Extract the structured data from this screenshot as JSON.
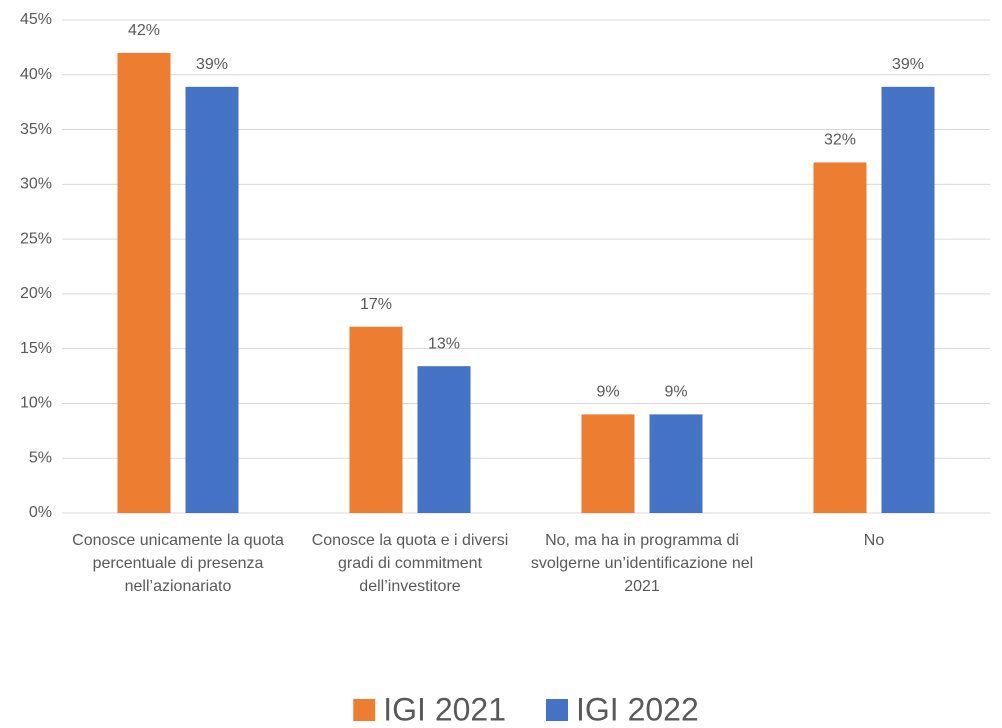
{
  "chart_data": {
    "type": "bar",
    "categories": [
      "Conosce unicamente la quota percentuale di presenza nell’azionariato",
      "Conosce la quota e i diversi gradi di commitment dell’investitore",
      "No, ma ha in programma di svolgerne un’identificazione nel 2021",
      "No"
    ],
    "series": [
      {
        "name": "IGI 2021",
        "color": "#ed7d31",
        "values": [
          42,
          17,
          9,
          32
        ],
        "value_labels": [
          "42%",
          "17%",
          "9%",
          "32%"
        ]
      },
      {
        "name": "IGI 2022",
        "color": "#4472c4",
        "values": [
          38.9,
          13.4,
          9,
          38.9
        ],
        "value_labels": [
          "39%",
          "13%",
          "9%",
          "39%"
        ]
      }
    ],
    "ylim": [
      0,
      45
    ],
    "yticks": [
      {
        "value": 0,
        "label": "0%"
      },
      {
        "value": 5,
        "label": "5%"
      },
      {
        "value": 10,
        "label": "10%"
      },
      {
        "value": 15,
        "label": "15%"
      },
      {
        "value": 20,
        "label": "20%"
      },
      {
        "value": 25,
        "label": "25%"
      },
      {
        "value": 30,
        "label": "30%"
      },
      {
        "value": 35,
        "label": "35%"
      },
      {
        "value": 40,
        "label": "40%"
      },
      {
        "value": 45,
        "label": "45%"
      }
    ],
    "grid": true,
    "legend": "bottom"
  }
}
